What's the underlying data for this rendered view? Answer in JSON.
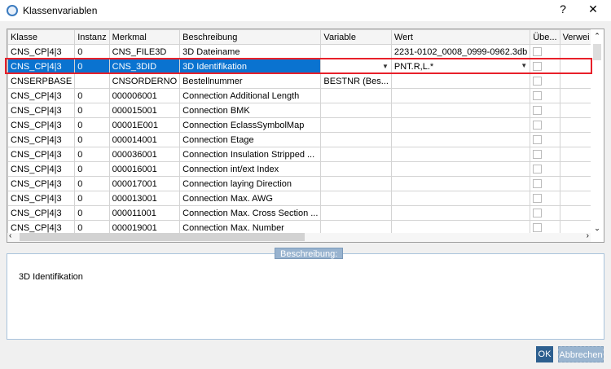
{
  "window": {
    "title": "Klassenvariablen",
    "help": "?",
    "close": "✕"
  },
  "table": {
    "columns": [
      "Klasse",
      "Instanz",
      "Merkmal",
      "Beschreibung",
      "Variable",
      "Wert",
      "Übe...",
      "Verwei"
    ],
    "rows": [
      [
        "CNS_CP|4|3",
        "0",
        "CNS_FILE3D",
        "3D Dateiname",
        "",
        "2231-0102_0008_0999-0962.3db"
      ],
      [
        "CNS_CP|4|3",
        "0",
        "CNS_3DID",
        "3D Identifikation",
        "",
        "PNT.R,L.*"
      ],
      [
        "CNSERPBASE",
        "",
        "CNSORDERNO",
        "Bestellnummer",
        "BESTNR (Bes...",
        ""
      ],
      [
        "CNS_CP|4|3",
        "0",
        "000006001",
        "Connection Additional Length",
        "",
        ""
      ],
      [
        "CNS_CP|4|3",
        "0",
        "000015001",
        "Connection BMK",
        "",
        ""
      ],
      [
        "CNS_CP|4|3",
        "0",
        "00001E001",
        "Connection EclassSymbolMap",
        "",
        ""
      ],
      [
        "CNS_CP|4|3",
        "0",
        "000014001",
        "Connection Etage",
        "",
        ""
      ],
      [
        "CNS_CP|4|3",
        "0",
        "000036001",
        "Connection Insulation Stripped ...",
        "",
        ""
      ],
      [
        "CNS_CP|4|3",
        "0",
        "000016001",
        "Connection int/ext Index",
        "",
        ""
      ],
      [
        "CNS_CP|4|3",
        "0",
        "000017001",
        "Connection laying Direction",
        "",
        ""
      ],
      [
        "CNS_CP|4|3",
        "0",
        "000013001",
        "Connection Max. AWG",
        "",
        ""
      ],
      [
        "CNS_CP|4|3",
        "0",
        "000011001",
        "Connection Max. Cross Section ...",
        "",
        ""
      ],
      [
        "CNS_CP|4|3",
        "0",
        "000019001",
        "Connection Max. Number",
        "",
        ""
      ]
    ],
    "selected_row": 1
  },
  "description": {
    "label": "Beschreibung:",
    "text": "3D Identifikation"
  },
  "buttons": {
    "ok": "OK",
    "cancel": "Abbrechen"
  },
  "colors": {
    "selection": "#0a73d0",
    "highlight_border": "#e8202a",
    "button": "#2d5f8f"
  }
}
